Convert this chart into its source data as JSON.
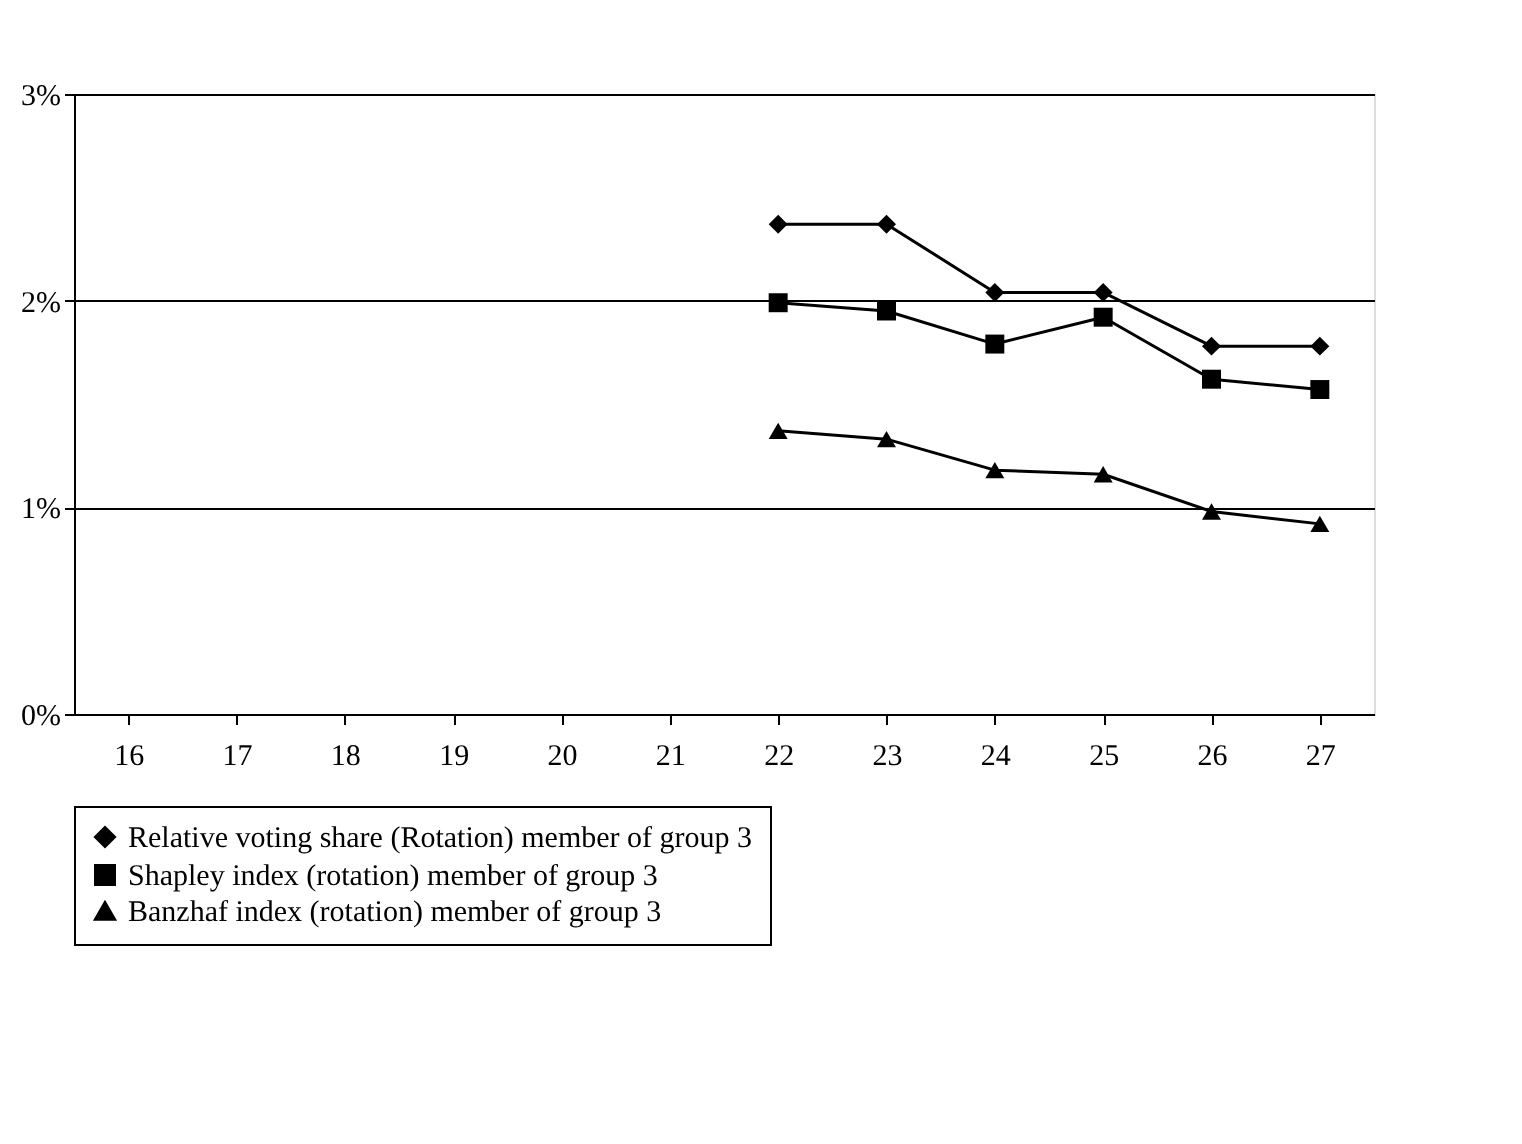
{
  "chart_data": {
    "type": "line",
    "categories": [
      "16",
      "17",
      "18",
      "19",
      "20",
      "21",
      "22",
      "23",
      "24",
      "25",
      "26",
      "27"
    ],
    "series": [
      {
        "name": "Relative voting share (Rotation) member of group 3",
        "color": "#000000",
        "marker": "diamond",
        "values": [
          null,
          null,
          null,
          null,
          null,
          null,
          2.37,
          2.37,
          2.04,
          2.04,
          1.78,
          1.78
        ]
      },
      {
        "name": "Shapley index (rotation)  member of group 3",
        "color": "#000000",
        "marker": "square",
        "values": [
          null,
          null,
          null,
          null,
          null,
          null,
          1.99,
          1.95,
          1.79,
          1.92,
          1.62,
          1.57
        ]
      },
      {
        "name": "Banzhaf index (rotation) member of group 3",
        "color": "#000000",
        "marker": "triangle",
        "values": [
          null,
          null,
          null,
          null,
          null,
          null,
          1.37,
          1.33,
          1.18,
          1.16,
          0.98,
          0.92
        ]
      }
    ],
    "ylim": [
      0,
      3
    ],
    "yticks": [
      {
        "value": 0,
        "label": "0%"
      },
      {
        "value": 1,
        "label": "1%"
      },
      {
        "value": 2,
        "label": "2%"
      },
      {
        "value": 3,
        "label": "3%"
      }
    ],
    "grid": "y",
    "legend": "bottom",
    "line_style": "solid"
  }
}
